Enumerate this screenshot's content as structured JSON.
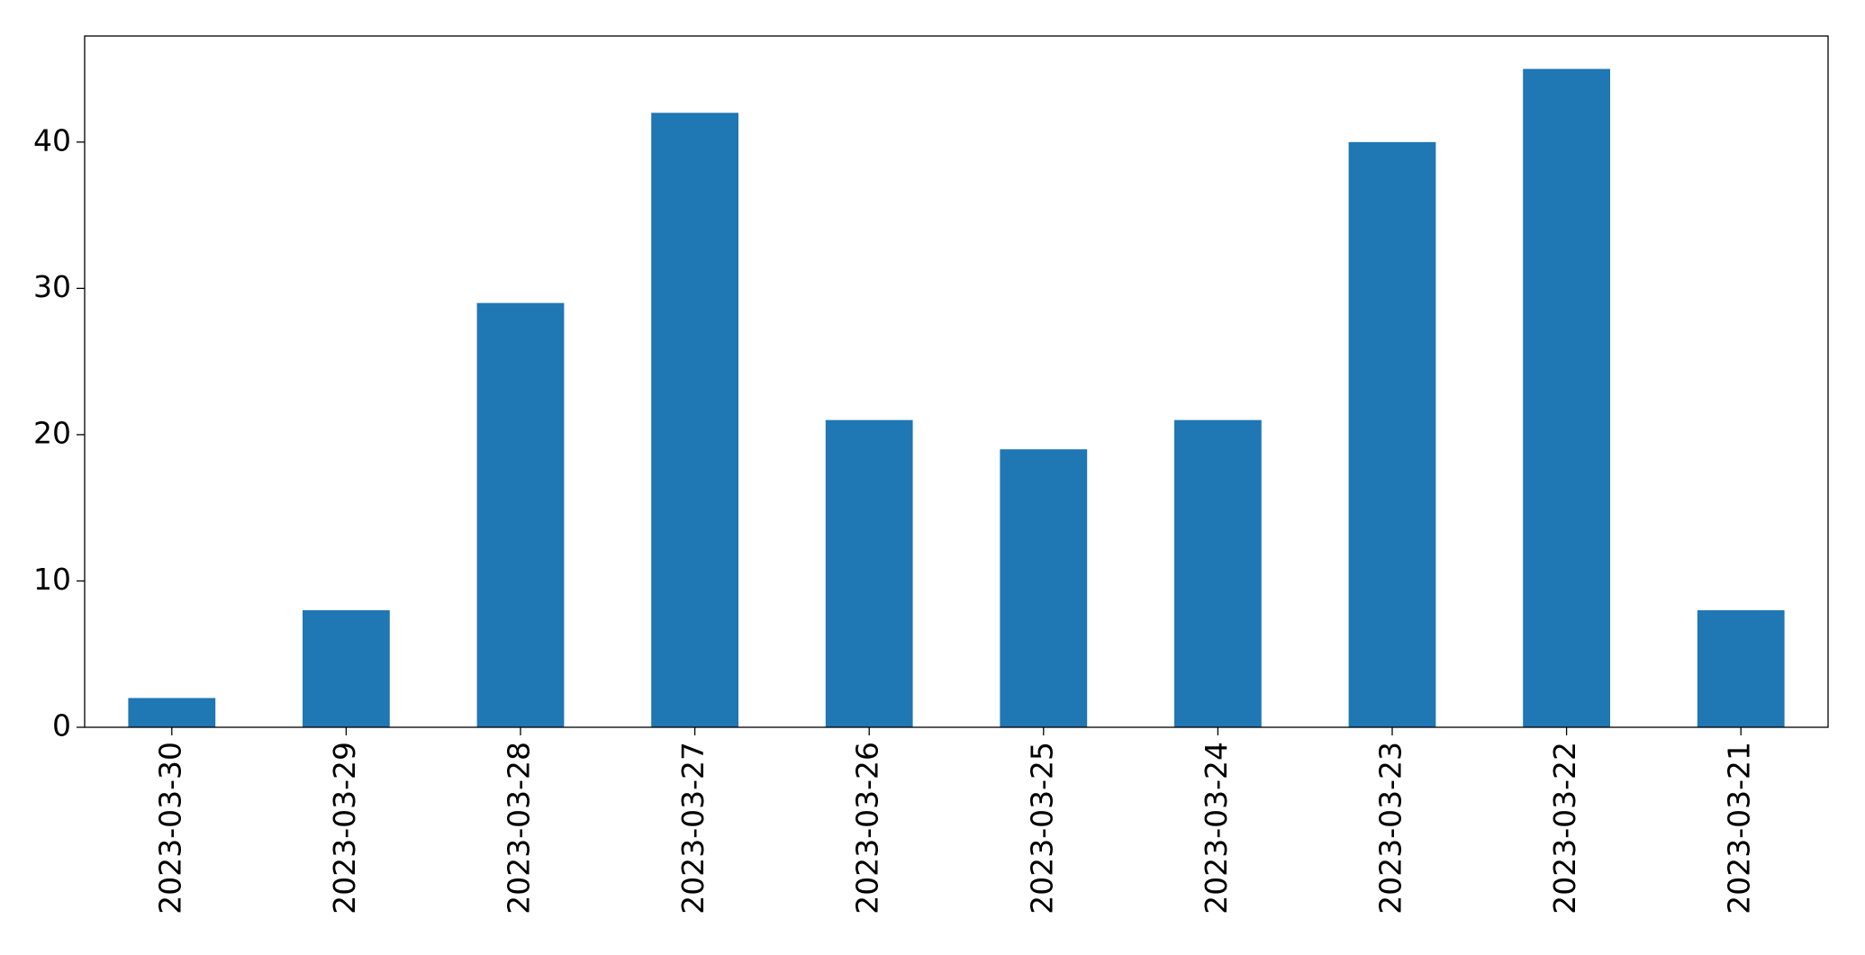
{
  "chart_data": {
    "type": "bar",
    "categories": [
      "2023-03-30",
      "2023-03-29",
      "2023-03-28",
      "2023-03-27",
      "2023-03-26",
      "2023-03-25",
      "2023-03-24",
      "2023-03-23",
      "2023-03-22",
      "2023-03-21"
    ],
    "values": [
      2,
      8,
      29,
      42,
      21,
      19,
      21,
      40,
      45,
      8
    ],
    "color": "#1f77b4",
    "ylim": [
      0,
      47.25
    ],
    "yticks": [
      0,
      10,
      20,
      30,
      40
    ],
    "grid": false
  }
}
